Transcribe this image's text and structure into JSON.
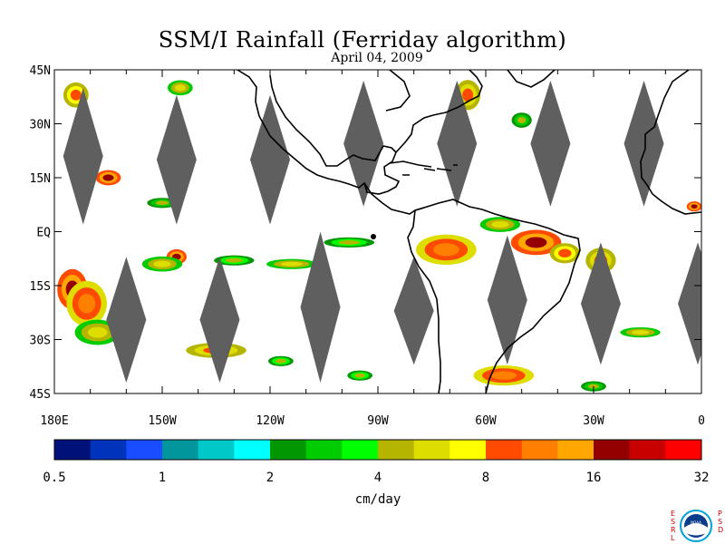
{
  "title": "SSM/I Rainfall (Ferriday algorithm)",
  "date": "April 04, 2009",
  "map": {
    "lat_labels": [
      "45N",
      "30N",
      "15N",
      "EQ",
      "15S",
      "30S",
      "45S"
    ],
    "lat_values": [
      45,
      30,
      15,
      0,
      -15,
      -30,
      -45
    ],
    "lon_labels": [
      "180E",
      "150W",
      "120W",
      "90W",
      "60W",
      "30W",
      "0"
    ],
    "lon_values": [
      -180,
      -150,
      -120,
      -90,
      -60,
      -30,
      0
    ],
    "lon_range": [
      -180,
      0
    ],
    "lat_range": [
      -45,
      45
    ],
    "gap_color": "#5f5f5f",
    "coastline_color": "#000000",
    "swath_gaps": [
      {
        "lon": -172,
        "lat_top": 40,
        "lat_bottom": 2
      },
      {
        "lon": -146,
        "lat_top": 38,
        "lat_bottom": 2
      },
      {
        "lon": -120,
        "lat_top": 38,
        "lat_bottom": 2
      },
      {
        "lon": -94,
        "lat_top": 42,
        "lat_bottom": 7
      },
      {
        "lon": -68,
        "lat_top": 42,
        "lat_bottom": 7
      },
      {
        "lon": -42,
        "lat_top": 42,
        "lat_bottom": 7
      },
      {
        "lon": -16,
        "lat_top": 42,
        "lat_bottom": 7
      },
      {
        "lon": -160,
        "lat_top": -7,
        "lat_bottom": -42
      },
      {
        "lon": -134,
        "lat_top": -7,
        "lat_bottom": -42
      },
      {
        "lon": -106,
        "lat_top": 0,
        "lat_bottom": -42
      },
      {
        "lon": -80,
        "lat_top": -7,
        "lat_bottom": -37
      },
      {
        "lon": -54,
        "lat_top": -1,
        "lat_bottom": -37
      },
      {
        "lon": -28,
        "lat_top": -3,
        "lat_bottom": -37
      },
      {
        "lon": -1,
        "lat_top": -3,
        "lat_bottom": -37
      }
    ],
    "rain_areas": [
      {
        "lon": -175,
        "lat": -16,
        "intensity": 20,
        "w": 6,
        "h": 8
      },
      {
        "lon": -171,
        "lat": -20,
        "intensity": 12,
        "w": 8,
        "h": 9
      },
      {
        "lon": -168,
        "lat": -28,
        "intensity": 6,
        "w": 9,
        "h": 5
      },
      {
        "lon": -165,
        "lat": 15,
        "intensity": 18,
        "w": 5,
        "h": 3
      },
      {
        "lon": -174,
        "lat": 38,
        "intensity": 10,
        "w": 5,
        "h": 5
      },
      {
        "lon": -146,
        "lat": -7,
        "intensity": 20,
        "w": 4,
        "h": 3
      },
      {
        "lon": -150,
        "lat": -9,
        "intensity": 6,
        "w": 8,
        "h": 3
      },
      {
        "lon": -150,
        "lat": 8,
        "intensity": 4,
        "w": 6,
        "h": 2
      },
      {
        "lon": -145,
        "lat": 40,
        "intensity": 6,
        "w": 5,
        "h": 3
      },
      {
        "lon": -130,
        "lat": -8,
        "intensity": 5,
        "w": 8,
        "h": 2
      },
      {
        "lon": -114,
        "lat": -9,
        "intensity": 6,
        "w": 10,
        "h": 2
      },
      {
        "lon": -135,
        "lat": -33,
        "intensity": 8,
        "w": 12,
        "h": 3
      },
      {
        "lon": -117,
        "lat": -36,
        "intensity": 5,
        "w": 5,
        "h": 2
      },
      {
        "lon": -98,
        "lat": -3,
        "intensity": 5,
        "w": 10,
        "h": 2
      },
      {
        "lon": -95,
        "lat": -40,
        "intensity": 5,
        "w": 5,
        "h": 2
      },
      {
        "lon": -71,
        "lat": -5,
        "intensity": 12,
        "w": 12,
        "h": 6
      },
      {
        "lon": -56,
        "lat": 2,
        "intensity": 6,
        "w": 8,
        "h": 3
      },
      {
        "lon": -46,
        "lat": -3,
        "intensity": 18,
        "w": 10,
        "h": 5
      },
      {
        "lon": -38,
        "lat": -6,
        "intensity": 10,
        "w": 6,
        "h": 4
      },
      {
        "lon": -55,
        "lat": -40,
        "intensity": 12,
        "w": 12,
        "h": 4
      },
      {
        "lon": -65,
        "lat": 38,
        "intensity": 8,
        "w": 5,
        "h": 6
      },
      {
        "lon": -50,
        "lat": 31,
        "intensity": 4,
        "w": 4,
        "h": 3
      },
      {
        "lon": -17,
        "lat": -28,
        "intensity": 6,
        "w": 8,
        "h": 2
      },
      {
        "lon": -30,
        "lat": -43,
        "intensity": 4,
        "w": 5,
        "h": 2
      },
      {
        "lon": -2,
        "lat": 7,
        "intensity": 18,
        "w": 3,
        "h": 2
      },
      {
        "lon": -28,
        "lat": -8,
        "intensity": 8,
        "w": 6,
        "h": 5
      }
    ]
  },
  "colorbar": {
    "colors": [
      "#00127a",
      "#0033bb",
      "#1a4dff",
      "#00969b",
      "#00c8c8",
      "#00ffff",
      "#009700",
      "#00cc00",
      "#00ff00",
      "#b5b500",
      "#dddd00",
      "#ffff00",
      "#ff4b00",
      "#ff7f00",
      "#ffa600",
      "#940000",
      "#c80000",
      "#ff0000"
    ],
    "tick_labels": [
      "0.5",
      "1",
      "2",
      "4",
      "8",
      "16",
      "32"
    ],
    "unit": "cm/day"
  },
  "logo": {
    "left_letters": [
      "E",
      "S",
      "R",
      "L"
    ],
    "right_letters": [
      "P",
      "S",
      "D"
    ],
    "center_text": "NOAA"
  }
}
